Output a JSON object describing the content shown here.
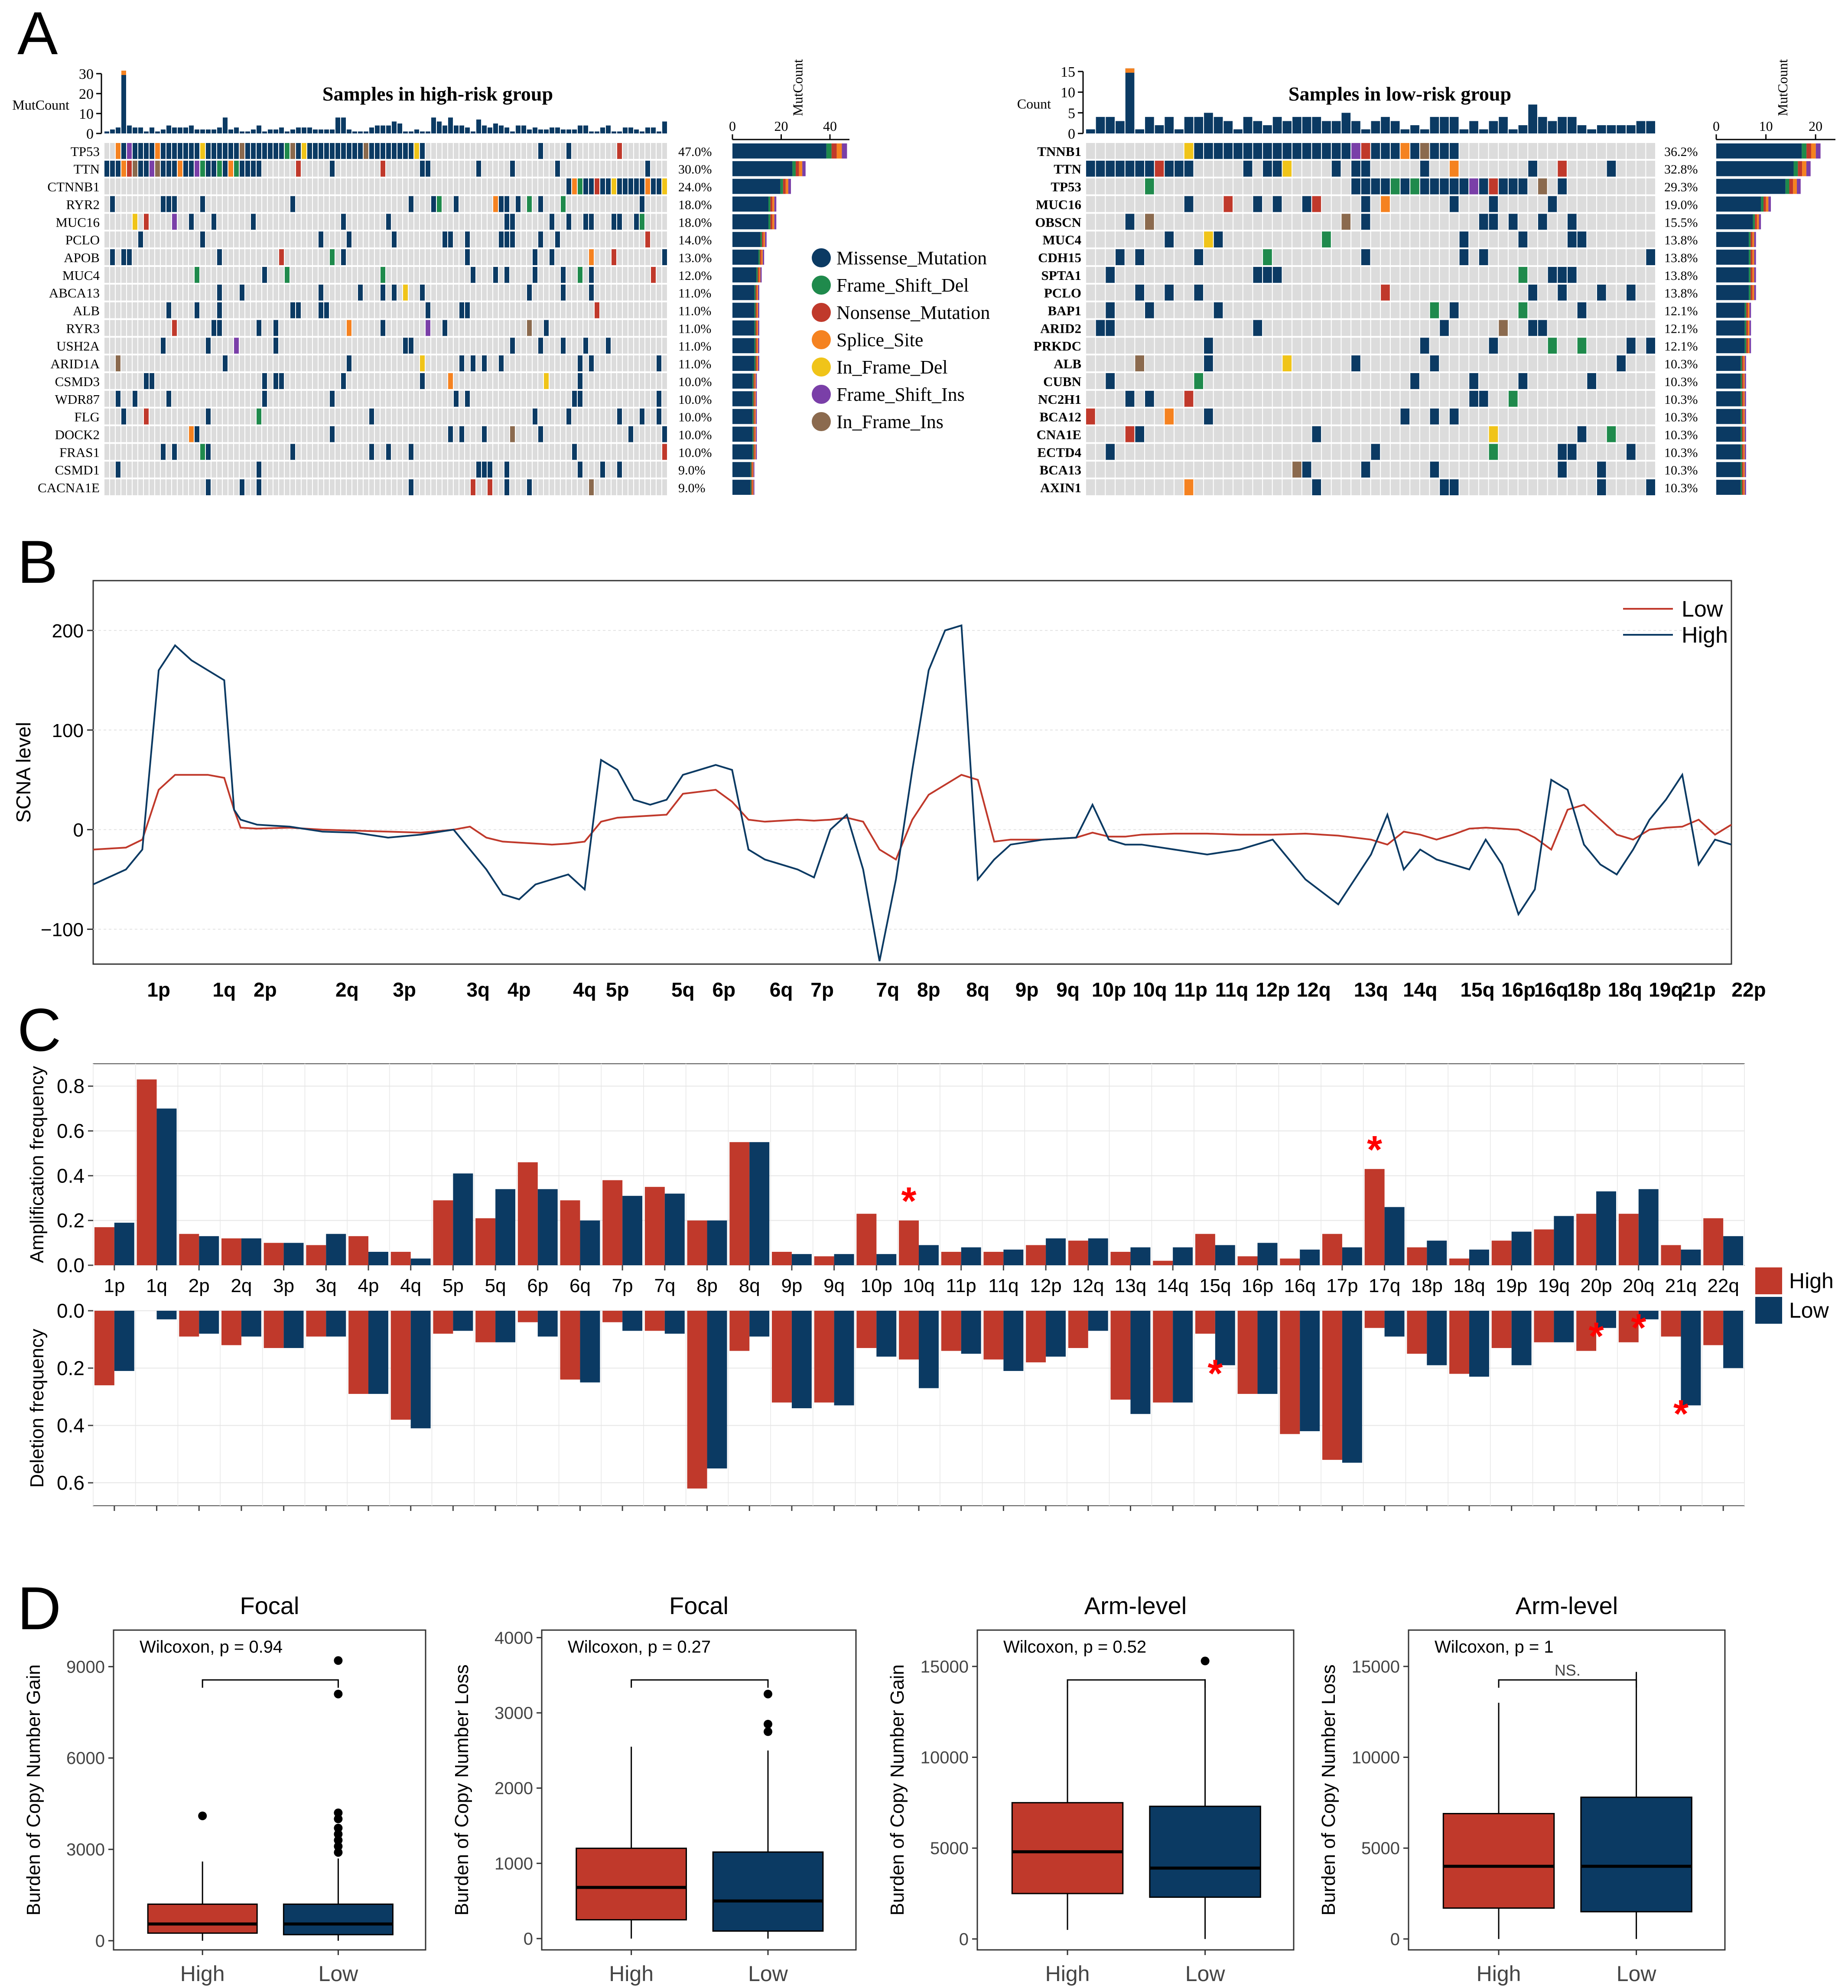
{
  "colors": {
    "missense": "#0b3a63",
    "frame_shift_del": "#1f8a4c",
    "nonsense": "#c0392b",
    "splice": "#f58220",
    "in_frame_del": "#f0c419",
    "frame_shift_ins": "#7a3fa8",
    "in_frame_ins": "#8b6a4e",
    "bg_cell": "#dcdcdc",
    "high": "#c0392b",
    "low": "#0b3a63",
    "star": "#ff0000"
  },
  "panels": {
    "a": "A",
    "b": "B",
    "c": "C",
    "d": "D"
  },
  "chart_data": [
    {
      "id": "A_left",
      "type": "heatmap",
      "title": "Samples in high-risk group",
      "top_label": "MutCount",
      "top_ticks": [
        "30",
        "20",
        "10",
        "0"
      ],
      "right_label": "MutCount",
      "right_ticks": [
        "0",
        "20",
        "40"
      ],
      "right_max": 48,
      "n_samples": 100,
      "genes": [
        "TP53",
        "TTN",
        "CTNNB1",
        "RYR2",
        "MUC16",
        "PCLO",
        "APOB",
        "MUC4",
        "ABCA13",
        "ALB",
        "RYR3",
        "USH2A",
        "ARID1A",
        "CSMD3",
        "WDR87",
        "FLG",
        "DOCK2",
        "FRAS1",
        "CSMD1",
        "CACNA1E"
      ],
      "percents": [
        "47.0%",
        "30.0%",
        "24.0%",
        "18.0%",
        "18.0%",
        "14.0%",
        "13.0%",
        "12.0%",
        "11.0%",
        "11.0%",
        "11.0%",
        "11.0%",
        "11.0%",
        "10.0%",
        "10.0%",
        "10.0%",
        "10.0%",
        "10.0%",
        "9.0%",
        "9.0%"
      ],
      "counts": [
        47,
        30,
        24,
        18,
        18,
        14,
        13,
        12,
        11,
        11,
        11,
        11,
        11,
        10,
        10,
        10,
        10,
        10,
        9,
        9
      ]
    },
    {
      "id": "A_right",
      "type": "heatmap",
      "title": "Samples in low-risk group",
      "top_label": "Count",
      "top_ticks": [
        "15",
        "10",
        "5",
        "0"
      ],
      "right_label": "MutCount",
      "right_ticks": [
        "0",
        "10",
        "20"
      ],
      "right_max": 24,
      "n_samples": 58,
      "genes": [
        "TNNB1",
        "TTN",
        "TP53",
        "MUC16",
        "OBSCN",
        "MUC4",
        "CDH15",
        "SPTA1",
        "PCLO",
        "BAP1",
        "ARID2",
        "PRKDC",
        "ALB",
        "CUBN",
        "NC2H1",
        "BCA12",
        "CNA1E",
        "ECTD4",
        "BCA13",
        "AXIN1"
      ],
      "percents": [
        "36.2%",
        "32.8%",
        "29.3%",
        "19.0%",
        "15.5%",
        "13.8%",
        "13.8%",
        "13.8%",
        "13.8%",
        "12.1%",
        "12.1%",
        "12.1%",
        "10.3%",
        "10.3%",
        "10.3%",
        "10.3%",
        "10.3%",
        "10.3%",
        "10.3%",
        "10.3%"
      ],
      "counts": [
        21,
        19,
        17,
        11,
        9,
        8,
        8,
        8,
        8,
        7,
        7,
        7,
        6,
        6,
        6,
        6,
        6,
        6,
        6,
        6
      ]
    },
    {
      "id": "A_legend",
      "type": "legend",
      "entries": [
        "Missense_Mutation",
        "Frame_Shift_Del",
        "Nonsense_Mutation",
        "Splice_Site",
        "In_Frame_Del",
        "Frame_Shift_Ins",
        "In_Frame_Ins"
      ]
    },
    {
      "id": "B",
      "type": "line",
      "ylabel": "SCNA level",
      "yticks": [
        200,
        100,
        0,
        -100
      ],
      "ylim": [
        -135,
        250
      ],
      "xlim": [
        0,
        100
      ],
      "legend": [
        "Low",
        "High"
      ],
      "xtick_labels": [
        "1p",
        "1q",
        "2p",
        "2q",
        "3p",
        "3q",
        "4p",
        "4q",
        "5p",
        "5q",
        "6p",
        "6q",
        "7p",
        "7q",
        "8p",
        "8q",
        "9p",
        "9q",
        "10p",
        "10q",
        "11p",
        "11q",
        "12p",
        "12q",
        "13q",
        "14q",
        "15q",
        "16p",
        "16q",
        "18p",
        "18q",
        "19q",
        "21p",
        "22p"
      ],
      "xtick_pos": [
        4,
        8,
        10.5,
        15.5,
        19,
        23.5,
        26,
        30,
        32,
        36,
        38.5,
        42,
        44.5,
        48.5,
        51,
        54,
        57,
        59.5,
        62,
        64.5,
        67,
        69.5,
        72,
        74.5,
        78,
        81,
        84.5,
        87,
        89,
        91,
        93.5,
        96,
        98,
        101.5
      ],
      "series": [
        {
          "name": "Low",
          "x": [
            0,
            2,
            3,
            4,
            5,
            6,
            7,
            8,
            8.6,
            9,
            10,
            12,
            14,
            16,
            18,
            20,
            22,
            23,
            24,
            25,
            26,
            27,
            28,
            29,
            30,
            31,
            32,
            33,
            34,
            35,
            36,
            37,
            38,
            39,
            40,
            41,
            42,
            43,
            44,
            45,
            46,
            47,
            48,
            49,
            50,
            51,
            52,
            53,
            54,
            55,
            56,
            58,
            60,
            61,
            62,
            63,
            64,
            66,
            68,
            70,
            72,
            74,
            76,
            78,
            79,
            80,
            81,
            82,
            83,
            84,
            85,
            86,
            87,
            88,
            89,
            90,
            91,
            92,
            93,
            94,
            95,
            96,
            97,
            98,
            99,
            100
          ],
          "y": [
            -20,
            -18,
            -10,
            40,
            55,
            55,
            55,
            52,
            20,
            2,
            1,
            2,
            0,
            -1,
            -2,
            -3,
            0,
            3,
            -8,
            -12,
            -13,
            -14,
            -15,
            -14,
            -12,
            8,
            12,
            13,
            14,
            15,
            36,
            38,
            40,
            28,
            10,
            8,
            9,
            10,
            9,
            10,
            12,
            8,
            -20,
            -30,
            10,
            35,
            45,
            55,
            50,
            -12,
            -10,
            -10,
            -8,
            -3,
            -7,
            -7,
            -5,
            -4,
            -4,
            -5,
            -5,
            -4,
            -6,
            -10,
            -15,
            -2,
            -5,
            -10,
            -5,
            1,
            2,
            1,
            0,
            -8,
            -20,
            20,
            25,
            10,
            -5,
            -10,
            0,
            2,
            3,
            10,
            -5,
            5
          ]
        },
        {
          "name": "High",
          "x": [
            0,
            2,
            3,
            4,
            5,
            6,
            7,
            8,
            8.6,
            9,
            10,
            12,
            14,
            16,
            18,
            20,
            22,
            23,
            24,
            25,
            26,
            27,
            28,
            29,
            30,
            31,
            32,
            33,
            34,
            35,
            36,
            37,
            38,
            39,
            40,
            41,
            42,
            43,
            44,
            45,
            46,
            47,
            48,
            49,
            50,
            51,
            52,
            53,
            54,
            55,
            56,
            58,
            60,
            61,
            62,
            63,
            64,
            66,
            68,
            70,
            72,
            74,
            76,
            78,
            79,
            80,
            81,
            82,
            83,
            84,
            85,
            86,
            87,
            88,
            89,
            90,
            91,
            92,
            93,
            94,
            95,
            96,
            97,
            98,
            99,
            100
          ],
          "y": [
            -55,
            -40,
            -20,
            160,
            185,
            170,
            160,
            150,
            20,
            10,
            5,
            3,
            -2,
            -3,
            -8,
            -5,
            0,
            -20,
            -40,
            -65,
            -70,
            -55,
            -50,
            -45,
            -60,
            70,
            60,
            30,
            25,
            30,
            55,
            60,
            65,
            60,
            -20,
            -30,
            -35,
            -40,
            -48,
            0,
            15,
            -40,
            -132,
            -50,
            60,
            160,
            200,
            205,
            -50,
            -30,
            -15,
            -10,
            -8,
            25,
            -10,
            -15,
            -15,
            -20,
            -25,
            -20,
            -10,
            -50,
            -75,
            -25,
            15,
            -40,
            -20,
            -30,
            -35,
            -40,
            -10,
            -35,
            -85,
            -60,
            50,
            40,
            -15,
            -35,
            -45,
            -20,
            10,
            30,
            55,
            -35,
            -10,
            -15
          ]
        }
      ],
      "colors": [
        "#c0392b",
        "#0b3a63"
      ]
    },
    {
      "id": "C_amp",
      "type": "bar",
      "ylabel": "Amplification frequency",
      "yticks": [
        "0.8",
        "0.6",
        "0.4",
        "0.2",
        "0.0"
      ],
      "ylim": [
        0,
        0.9
      ],
      "categories": [
        "1p",
        "1q",
        "2p",
        "2q",
        "3p",
        "3q",
        "4p",
        "4q",
        "5p",
        "5q",
        "6p",
        "6q",
        "7p",
        "7q",
        "8p",
        "8q",
        "9p",
        "9q",
        "10p",
        "10q",
        "11p",
        "11q",
        "12p",
        "12q",
        "13q",
        "14q",
        "15q",
        "16p",
        "16q",
        "17p",
        "17q",
        "18p",
        "18q",
        "19p",
        "19q",
        "20p",
        "20q",
        "21q",
        "22q"
      ],
      "series": [
        {
          "name": "High",
          "values": [
            0.17,
            0.83,
            0.14,
            0.12,
            0.1,
            0.09,
            0.13,
            0.06,
            0.29,
            0.21,
            0.46,
            0.29,
            0.38,
            0.35,
            0.2,
            0.55,
            0.06,
            0.04,
            0.23,
            0.2,
            0.06,
            0.06,
            0.09,
            0.11,
            0.06,
            0.02,
            0.14,
            0.04,
            0.03,
            0.14,
            0.43,
            0.08,
            0.03,
            0.11,
            0.16,
            0.23,
            0.23,
            0.09,
            0.21
          ]
        },
        {
          "name": "Low",
          "values": [
            0.19,
            0.7,
            0.13,
            0.12,
            0.1,
            0.14,
            0.06,
            0.03,
            0.41,
            0.34,
            0.34,
            0.2,
            0.31,
            0.32,
            0.2,
            0.55,
            0.05,
            0.05,
            0.05,
            0.09,
            0.08,
            0.07,
            0.12,
            0.12,
            0.08,
            0.08,
            0.09,
            0.1,
            0.07,
            0.08,
            0.26,
            0.11,
            0.07,
            0.15,
            0.22,
            0.33,
            0.34,
            0.07,
            0.13
          ]
        }
      ],
      "stars": [
        "10q",
        "17q"
      ]
    },
    {
      "id": "C_del",
      "type": "bar",
      "ylabel": "Deletion frequency",
      "yticks": [
        "0.0",
        "0.2",
        "0.4",
        "0.6"
      ],
      "ylim": [
        0,
        0.68
      ],
      "categories": [
        "1p",
        "1q",
        "2p",
        "2q",
        "3p",
        "3q",
        "4p",
        "4q",
        "5p",
        "5q",
        "6p",
        "6q",
        "7p",
        "7q",
        "8p",
        "8q",
        "9p",
        "9q",
        "10p",
        "10q",
        "11p",
        "11q",
        "12p",
        "12q",
        "13q",
        "14q",
        "15q",
        "16p",
        "16q",
        "17p",
        "17q",
        "18p",
        "18q",
        "19p",
        "19q",
        "20p",
        "20q",
        "21q",
        "22q"
      ],
      "series": [
        {
          "name": "High",
          "values": [
            0.26,
            0.0,
            0.09,
            0.12,
            0.13,
            0.09,
            0.29,
            0.38,
            0.08,
            0.11,
            0.04,
            0.24,
            0.04,
            0.07,
            0.62,
            0.14,
            0.32,
            0.32,
            0.13,
            0.17,
            0.14,
            0.17,
            0.18,
            0.13,
            0.31,
            0.32,
            0.08,
            0.29,
            0.43,
            0.52,
            0.06,
            0.15,
            0.22,
            0.13,
            0.11,
            0.14,
            0.11,
            0.09,
            0.12
          ]
        },
        {
          "name": "Low",
          "values": [
            0.21,
            0.03,
            0.08,
            0.09,
            0.13,
            0.09,
            0.29,
            0.41,
            0.07,
            0.11,
            0.09,
            0.25,
            0.07,
            0.08,
            0.55,
            0.09,
            0.34,
            0.33,
            0.16,
            0.27,
            0.15,
            0.21,
            0.16,
            0.07,
            0.36,
            0.32,
            0.19,
            0.29,
            0.42,
            0.53,
            0.09,
            0.19,
            0.23,
            0.19,
            0.11,
            0.06,
            0.03,
            0.33,
            0.2
          ]
        }
      ],
      "stars": [
        "15q",
        "20p",
        "20q",
        "21q"
      ]
    },
    {
      "id": "C_legend",
      "type": "legend",
      "entries": [
        "High",
        "Low"
      ]
    },
    {
      "id": "D1",
      "type": "box",
      "title": "Focal",
      "ylabel": "Burden of Copy Number Gain",
      "test": "Wilcoxon, p = 0.94",
      "sig": "",
      "ylim": [
        -300,
        10200
      ],
      "yticks": [
        0,
        3000,
        6000,
        9000
      ],
      "categories": [
        "High",
        "Low"
      ],
      "boxes": [
        {
          "min": 0,
          "q1": 250,
          "median": 550,
          "q3": 1200,
          "max": 2600,
          "outliers": [
            4100
          ]
        },
        {
          "min": 0,
          "q1": 200,
          "median": 550,
          "q3": 1200,
          "max": 2700,
          "outliers": [
            2900,
            3100,
            3300,
            3500,
            3700,
            4000,
            4200,
            8100,
            9200
          ]
        }
      ]
    },
    {
      "id": "D2",
      "type": "box",
      "title": "Focal",
      "ylabel": "Burden of Copy Number Loss",
      "test": "Wilcoxon, p = 0.27",
      "sig": "",
      "ylim": [
        -150,
        4100
      ],
      "yticks": [
        0,
        1000,
        2000,
        3000,
        4000
      ],
      "categories": [
        "High",
        "Low"
      ],
      "boxes": [
        {
          "min": 0,
          "q1": 250,
          "median": 680,
          "q3": 1200,
          "max": 2550,
          "outliers": []
        },
        {
          "min": 0,
          "q1": 100,
          "median": 500,
          "q3": 1150,
          "max": 2500,
          "outliers": [
            2750,
            2850,
            3250
          ]
        }
      ]
    },
    {
      "id": "D3",
      "type": "box",
      "title": "Arm-level",
      "ylabel": "Burden of Copy Number Gain",
      "test": "Wilcoxon, p = 0.52",
      "sig": "",
      "ylim": [
        -600,
        17000
      ],
      "yticks": [
        0,
        5000,
        10000,
        15000
      ],
      "categories": [
        "High",
        "Low"
      ],
      "boxes": [
        {
          "min": 500,
          "q1": 2500,
          "median": 4800,
          "q3": 7500,
          "max": 14000,
          "outliers": []
        },
        {
          "min": 0,
          "q1": 2300,
          "median": 3900,
          "q3": 7300,
          "max": 14300,
          "outliers": [
            15300
          ]
        }
      ]
    },
    {
      "id": "D4",
      "type": "box",
      "title": "Arm-level",
      "ylabel": "Burden of Copy Number Loss",
      "test": "Wilcoxon, p = 1",
      "sig": "NS.",
      "ylim": [
        -600,
        17000
      ],
      "yticks": [
        0,
        5000,
        10000,
        15000
      ],
      "categories": [
        "High",
        "Low"
      ],
      "boxes": [
        {
          "min": 0,
          "q1": 1700,
          "median": 4000,
          "q3": 6900,
          "max": 13000,
          "outliers": []
        },
        {
          "min": 0,
          "q1": 1500,
          "median": 4000,
          "q3": 7800,
          "max": 14700,
          "outliers": []
        }
      ]
    }
  ]
}
